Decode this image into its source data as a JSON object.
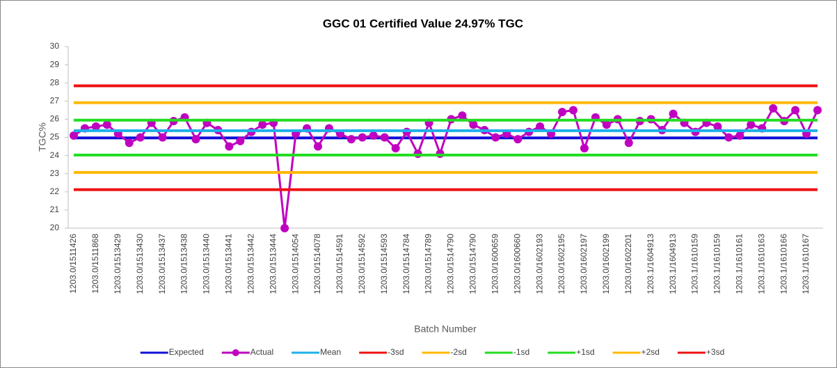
{
  "chart_data": {
    "type": "line",
    "title": "GGC 01 Certified Value 24.97% TGC",
    "x_label": "Batch Number",
    "y_label": "TGC%",
    "categories": [
      "1203.0/1511426",
      null,
      "1203.0/1511868",
      null,
      "1203.0/1513429",
      null,
      "1203.0/1513430",
      null,
      "1203.0/1513437",
      null,
      "1203.0/1513438",
      null,
      "1203.0/1513440",
      null,
      "1203.0/1513441",
      null,
      "1203.0/1513442",
      null,
      "1203.0/1513444",
      null,
      "1203.0/1514054",
      null,
      "1203.0/1514078",
      null,
      "1203.0/1514591",
      null,
      "1203.0/1514592",
      null,
      "1203.0/1514593",
      null,
      "1203.0/1514784",
      null,
      "1203.0/1514789",
      null,
      "1203.0/1514790",
      null,
      "1203.0/1514790",
      null,
      "1203.0/1600659",
      null,
      "1203.0/1600660",
      null,
      "1203.0/1602193",
      null,
      "1203.0/1602195",
      null,
      "1203.0/1602197",
      null,
      "1203.0/1602199",
      null,
      "1203.0/1602201",
      null,
      "1203.1/1604913",
      null,
      "1203.1/1604913",
      null,
      "1203.1/1610159",
      null,
      "1203.1/1610159",
      null,
      "1203.1/1610161",
      null,
      "1203.1/1610163",
      null,
      "1203.1/1610166",
      null,
      "1203.1/1610167",
      null
    ],
    "series": [
      {
        "name": "Expected",
        "color": "#1010d8",
        "values": [
          24.97,
          24.97,
          24.97,
          24.97,
          24.97,
          24.97,
          24.97,
          24.97,
          24.97,
          24.97,
          24.97,
          24.97,
          24.97,
          24.97,
          24.97,
          24.97,
          24.97,
          24.97,
          24.97,
          24.97,
          24.97,
          24.97,
          24.97,
          24.97,
          24.97,
          24.97,
          24.97,
          24.97,
          24.97,
          24.97,
          24.97,
          24.97,
          24.97,
          24.97,
          24.97,
          24.97,
          24.97,
          24.97,
          24.97,
          24.97,
          24.97,
          24.97,
          24.97,
          24.97,
          24.97,
          24.97,
          24.97,
          24.97,
          24.97,
          24.97,
          24.97,
          24.97,
          24.97,
          24.97,
          24.97,
          24.97,
          24.97,
          24.97,
          24.97,
          24.97,
          24.97,
          24.97,
          24.97,
          24.97,
          24.97,
          24.97,
          24.97,
          24.97
        ]
      },
      {
        "name": "Actual",
        "color": "#c000c0",
        "markers": true,
        "values": [
          25.1,
          25.5,
          25.6,
          25.7,
          25.2,
          24.7,
          25.0,
          25.8,
          25.0,
          25.9,
          26.1,
          24.9,
          25.8,
          25.4,
          24.5,
          24.8,
          25.3,
          25.7,
          25.8,
          20.0,
          25.2,
          25.5,
          24.5,
          25.5,
          25.2,
          24.9,
          25.0,
          25.1,
          25.0,
          24.4,
          25.3,
          24.1,
          25.8,
          24.1,
          26.0,
          26.2,
          25.7,
          25.4,
          25.0,
          25.2,
          24.9,
          25.3,
          25.6,
          25.2,
          26.4,
          26.5,
          24.4,
          26.1,
          25.7,
          26.0,
          24.7,
          25.9,
          26.0,
          25.4,
          26.3,
          25.8,
          25.3,
          25.8,
          25.6,
          25.0,
          25.1,
          25.7,
          25.5,
          26.6,
          25.9,
          26.5,
          25.2,
          26.5
        ]
      },
      {
        "name": "Mean",
        "color": "#1cb0e8",
        "values": [
          25.37,
          25.37,
          25.37,
          25.37,
          25.37,
          25.37,
          25.37,
          25.37,
          25.37,
          25.37,
          25.37,
          25.37,
          25.37,
          25.37,
          25.37,
          25.37,
          25.37,
          25.37,
          25.37,
          25.37,
          25.37,
          25.37,
          25.37,
          25.37,
          25.37,
          25.37,
          25.37,
          25.37,
          25.37,
          25.37,
          25.37,
          25.37,
          25.37,
          25.37,
          25.37,
          25.37,
          25.37,
          25.37,
          25.37,
          25.37,
          25.37,
          25.37,
          25.37,
          25.37,
          25.37,
          25.37,
          25.37,
          25.37,
          25.37,
          25.37,
          25.37,
          25.37,
          25.37,
          25.37,
          25.37,
          25.37,
          25.37,
          25.37,
          25.37,
          25.37,
          25.37,
          25.37,
          25.37,
          25.37,
          25.37,
          25.37,
          25.37,
          25.37
        ]
      },
      {
        "name": "-3sd",
        "color": "#ee1111",
        "values": [
          22.12,
          22.12,
          22.12,
          22.12,
          22.12,
          22.12,
          22.12,
          22.12,
          22.12,
          22.12,
          22.12,
          22.12,
          22.12,
          22.12,
          22.12,
          22.12,
          22.12,
          22.12,
          22.12,
          22.12,
          22.12,
          22.12,
          22.12,
          22.12,
          22.12,
          22.12,
          22.12,
          22.12,
          22.12,
          22.12,
          22.12,
          22.12,
          22.12,
          22.12,
          22.12,
          22.12,
          22.12,
          22.12,
          22.12,
          22.12,
          22.12,
          22.12,
          22.12,
          22.12,
          22.12,
          22.12,
          22.12,
          22.12,
          22.12,
          22.12,
          22.12,
          22.12,
          22.12,
          22.12,
          22.12,
          22.12,
          22.12,
          22.12,
          22.12,
          22.12,
          22.12,
          22.12,
          22.12,
          22.12,
          22.12,
          22.12,
          22.12,
          22.12
        ]
      },
      {
        "name": "-2sd",
        "color": "#ffb800",
        "values": [
          23.07,
          23.07,
          23.07,
          23.07,
          23.07,
          23.07,
          23.07,
          23.07,
          23.07,
          23.07,
          23.07,
          23.07,
          23.07,
          23.07,
          23.07,
          23.07,
          23.07,
          23.07,
          23.07,
          23.07,
          23.07,
          23.07,
          23.07,
          23.07,
          23.07,
          23.07,
          23.07,
          23.07,
          23.07,
          23.07,
          23.07,
          23.07,
          23.07,
          23.07,
          23.07,
          23.07,
          23.07,
          23.07,
          23.07,
          23.07,
          23.07,
          23.07,
          23.07,
          23.07,
          23.07,
          23.07,
          23.07,
          23.07,
          23.07,
          23.07,
          23.07,
          23.07,
          23.07,
          23.07,
          23.07,
          23.07,
          23.07,
          23.07,
          23.07,
          23.07,
          23.07,
          23.07,
          23.07,
          23.07,
          23.07,
          23.07,
          23.07,
          23.07
        ]
      },
      {
        "name": "-1sd",
        "color": "#22dd22",
        "values": [
          24.03,
          24.03,
          24.03,
          24.03,
          24.03,
          24.03,
          24.03,
          24.03,
          24.03,
          24.03,
          24.03,
          24.03,
          24.03,
          24.03,
          24.03,
          24.03,
          24.03,
          24.03,
          24.03,
          24.03,
          24.03,
          24.03,
          24.03,
          24.03,
          24.03,
          24.03,
          24.03,
          24.03,
          24.03,
          24.03,
          24.03,
          24.03,
          24.03,
          24.03,
          24.03,
          24.03,
          24.03,
          24.03,
          24.03,
          24.03,
          24.03,
          24.03,
          24.03,
          24.03,
          24.03,
          24.03,
          24.03,
          24.03,
          24.03,
          24.03,
          24.03,
          24.03,
          24.03,
          24.03,
          24.03,
          24.03,
          24.03,
          24.03,
          24.03,
          24.03,
          24.03,
          24.03,
          24.03,
          24.03,
          24.03,
          24.03,
          24.03,
          24.03
        ]
      },
      {
        "name": "+1sd",
        "color": "#22dd22",
        "values": [
          25.95,
          25.95,
          25.95,
          25.95,
          25.95,
          25.95,
          25.95,
          25.95,
          25.95,
          25.95,
          25.95,
          25.95,
          25.95,
          25.95,
          25.95,
          25.95,
          25.95,
          25.95,
          25.95,
          25.95,
          25.95,
          25.95,
          25.95,
          25.95,
          25.95,
          25.95,
          25.95,
          25.95,
          25.95,
          25.95,
          25.95,
          25.95,
          25.95,
          25.95,
          25.95,
          25.95,
          25.95,
          25.95,
          25.95,
          25.95,
          25.95,
          25.95,
          25.95,
          25.95,
          25.95,
          25.95,
          25.95,
          25.95,
          25.95,
          25.95,
          25.95,
          25.95,
          25.95,
          25.95,
          25.95,
          25.95,
          25.95,
          25.95,
          25.95,
          25.95,
          25.95,
          25.95,
          25.95,
          25.95,
          25.95,
          25.95,
          25.95,
          25.95
        ]
      },
      {
        "name": "+2sd",
        "color": "#ffb800",
        "values": [
          26.91,
          26.91,
          26.91,
          26.91,
          26.91,
          26.91,
          26.91,
          26.91,
          26.91,
          26.91,
          26.91,
          26.91,
          26.91,
          26.91,
          26.91,
          26.91,
          26.91,
          26.91,
          26.91,
          26.91,
          26.91,
          26.91,
          26.91,
          26.91,
          26.91,
          26.91,
          26.91,
          26.91,
          26.91,
          26.91,
          26.91,
          26.91,
          26.91,
          26.91,
          26.91,
          26.91,
          26.91,
          26.91,
          26.91,
          26.91,
          26.91,
          26.91,
          26.91,
          26.91,
          26.91,
          26.91,
          26.91,
          26.91,
          26.91,
          26.91,
          26.91,
          26.91,
          26.91,
          26.91,
          26.91,
          26.91,
          26.91,
          26.91,
          26.91,
          26.91,
          26.91,
          26.91,
          26.91,
          26.91,
          26.91,
          26.91,
          26.91,
          26.91
        ]
      },
      {
        "name": "+3sd",
        "color": "#ee1111",
        "values": [
          27.84,
          27.84,
          27.84,
          27.84,
          27.84,
          27.84,
          27.84,
          27.84,
          27.84,
          27.84,
          27.84,
          27.84,
          27.84,
          27.84,
          27.84,
          27.84,
          27.84,
          27.84,
          27.84,
          27.84,
          27.84,
          27.84,
          27.84,
          27.84,
          27.84,
          27.84,
          27.84,
          27.84,
          27.84,
          27.84,
          27.84,
          27.84,
          27.84,
          27.84,
          27.84,
          27.84,
          27.84,
          27.84,
          27.84,
          27.84,
          27.84,
          27.84,
          27.84,
          27.84,
          27.84,
          27.84,
          27.84,
          27.84,
          27.84,
          27.84,
          27.84,
          27.84,
          27.84,
          27.84,
          27.84,
          27.84,
          27.84,
          27.84,
          27.84,
          27.84,
          27.84,
          27.84,
          27.84,
          27.84,
          27.84,
          27.84,
          27.84,
          27.84
        ]
      }
    ],
    "ylim": [
      20,
      30
    ],
    "yticks": [
      20,
      21,
      22,
      23,
      24,
      25,
      26,
      27,
      28,
      29,
      30
    ],
    "grid": false,
    "legend": "bottom"
  }
}
